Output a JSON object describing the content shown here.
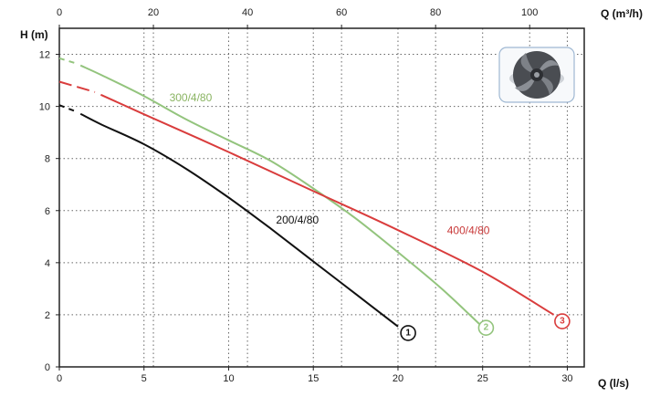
{
  "chart_data": {
    "type": "line",
    "xlabel": "Q (l/s)",
    "x2label": "Q (m³/h)",
    "ylabel": "H (m)",
    "xlim": [
      0,
      31
    ],
    "ylim": [
      0,
      13
    ],
    "x2lim": [
      0,
      111.6
    ],
    "xticks": [
      0,
      5,
      10,
      15,
      20,
      25,
      30
    ],
    "x2ticks": [
      0,
      20,
      40,
      60,
      80,
      100
    ],
    "yticks": [
      0,
      2,
      4,
      6,
      8,
      10,
      12
    ],
    "grid": true,
    "series": [
      {
        "name": "200/4/80",
        "color": "#111111",
        "label_at": [
          12.8,
          5.5
        ],
        "label_color": "#111111",
        "end_marker": "1",
        "marker_at": [
          20.6,
          1.3
        ],
        "dashed_x": [
          [
            0,
            1
          ]
        ],
        "x": [
          0,
          1,
          2.5,
          5,
          7.5,
          10,
          12.5,
          15,
          17.5,
          20
        ],
        "y": [
          10.05,
          9.8,
          9.3,
          8.55,
          7.6,
          6.5,
          5.3,
          4.05,
          2.8,
          1.55
        ]
      },
      {
        "name": "300/4/80",
        "color": "#93c47d",
        "label_at": [
          6.5,
          10.2
        ],
        "label_color": "#8ab462",
        "end_marker": "2",
        "marker_at": [
          25.2,
          1.5
        ],
        "dashed_x": [
          [
            0,
            1
          ]
        ],
        "x": [
          0,
          1,
          2.5,
          5,
          7.5,
          10,
          12.5,
          15,
          17.5,
          20,
          22.5,
          24.8
        ],
        "y": [
          11.85,
          11.65,
          11.2,
          10.4,
          9.5,
          8.7,
          7.9,
          6.85,
          5.7,
          4.4,
          3.05,
          1.65
        ]
      },
      {
        "name": "400/4/80",
        "color": "#d93c3c",
        "label_at": [
          22.9,
          5.1
        ],
        "label_color": "#c83838",
        "end_marker": "3",
        "marker_at": [
          29.7,
          1.75
        ],
        "dashed_x": [
          [
            0,
            2.1
          ]
        ],
        "x": [
          0,
          2.1,
          5,
          10,
          15,
          20,
          25,
          29.2
        ],
        "y": [
          10.95,
          10.55,
          9.7,
          8.25,
          6.75,
          5.25,
          3.65,
          2.0
        ]
      }
    ]
  }
}
